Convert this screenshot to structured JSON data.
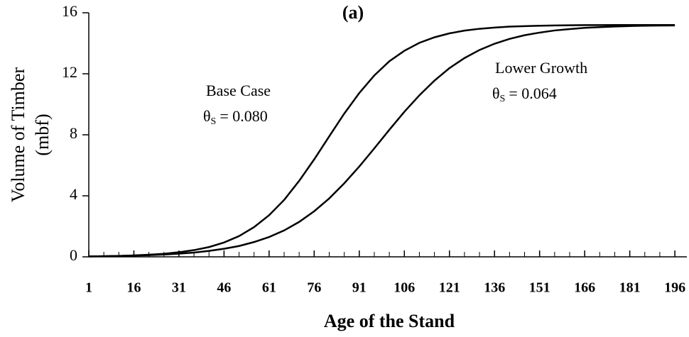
{
  "chart_data": {
    "type": "line",
    "title": "(a)",
    "xlabel": "Age of the Stand",
    "ylabel": [
      "Volume of Timber",
      "(mbf)"
    ],
    "x": [
      1,
      6,
      11,
      16,
      21,
      26,
      31,
      36,
      41,
      46,
      51,
      56,
      61,
      66,
      71,
      76,
      81,
      86,
      91,
      96,
      101,
      106,
      111,
      116,
      121,
      126,
      131,
      136,
      141,
      146,
      151,
      156,
      161,
      166,
      171,
      176,
      181,
      186,
      191,
      196
    ],
    "series": [
      {
        "name": "Base Case",
        "color": "#000000",
        "values": [
          0.03,
          0.04,
          0.06,
          0.09,
          0.14,
          0.2,
          0.3,
          0.44,
          0.64,
          0.94,
          1.36,
          1.95,
          2.73,
          3.73,
          4.98,
          6.39,
          7.9,
          9.39,
          10.74,
          11.89,
          12.82,
          13.51,
          14.03,
          14.39,
          14.65,
          14.83,
          14.95,
          15.03,
          15.09,
          15.12,
          15.15,
          15.17,
          15.18,
          15.19,
          15.19,
          15.2,
          15.2,
          15.2,
          15.2,
          15.2
        ]
      },
      {
        "name": "Lower Growth",
        "color": "#000000",
        "values": [
          0.03,
          0.04,
          0.06,
          0.08,
          0.11,
          0.15,
          0.21,
          0.28,
          0.39,
          0.53,
          0.71,
          0.97,
          1.3,
          1.73,
          2.29,
          2.99,
          3.83,
          4.82,
          5.92,
          7.11,
          8.33,
          9.51,
          10.59,
          11.55,
          12.37,
          13.03,
          13.56,
          13.97,
          14.29,
          14.53,
          14.7,
          14.84,
          14.93,
          15.01,
          15.06,
          15.1,
          15.13,
          15.15,
          15.16,
          15.17
        ]
      }
    ],
    "annotations": [
      {
        "series": "Base Case",
        "symbol": "θ",
        "subscript": "S",
        "text": "= 0.080"
      },
      {
        "series": "Lower Growth",
        "symbol": "θ",
        "subscript": "S",
        "text": "= 0.064"
      }
    ],
    "xlim": [
      1,
      200
    ],
    "xticks": [
      1,
      16,
      31,
      46,
      61,
      76,
      91,
      106,
      121,
      136,
      151,
      166,
      181,
      196
    ],
    "xminorticks": [
      1,
      6,
      11,
      16,
      21,
      26,
      31,
      36,
      41,
      46,
      51,
      56,
      61,
      66,
      71,
      76,
      81,
      86,
      91,
      96,
      101,
      106,
      111,
      116,
      121,
      126,
      131,
      136,
      141,
      146,
      151,
      156,
      161,
      166,
      171,
      176,
      181,
      186,
      191,
      196
    ],
    "ylim": [
      0,
      16
    ],
    "yticks": [
      0,
      4,
      8,
      12,
      16
    ],
    "grid": false
  }
}
